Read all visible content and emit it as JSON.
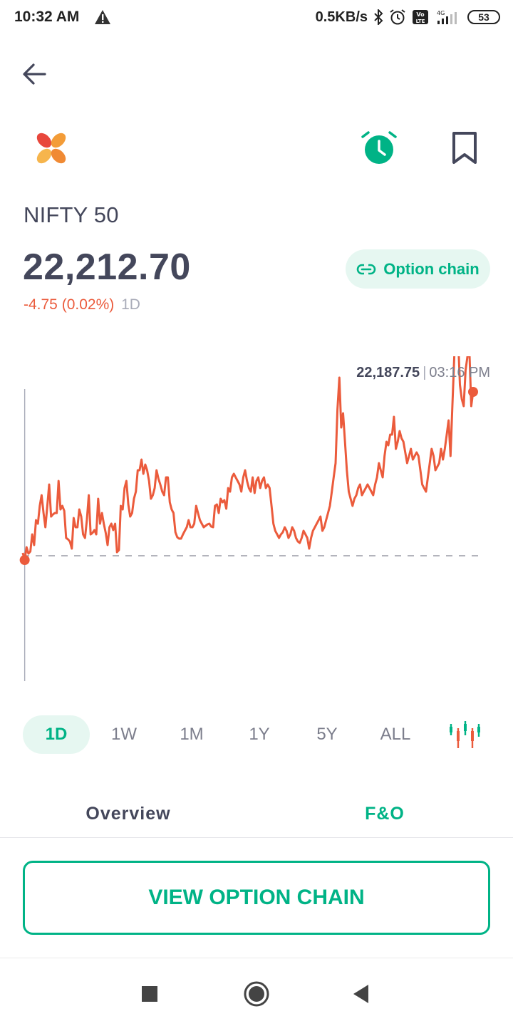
{
  "status_bar": {
    "time": "10:32 AM",
    "net_speed": "0.5KB/s",
    "network": "4G",
    "battery": "53",
    "icons": [
      "warning-icon",
      "bluetooth-icon",
      "alarm-icon",
      "volte-icon",
      "signal-icon",
      "battery-icon"
    ]
  },
  "header": {
    "back_icon": "arrow-left-icon",
    "logo": "groww-logo",
    "alarm_icon": "alarm-clock-icon",
    "bookmark_icon": "bookmark-icon"
  },
  "instrument": {
    "name": "NIFTY 50",
    "price": "22,212.70",
    "change": "-4.75 (0.02%)",
    "period": "1D",
    "option_chain_chip": "Option chain"
  },
  "colors": {
    "accent": "#00b386",
    "negative": "#eb5b3c",
    "text_primary": "#44475b",
    "text_muted": "#a8abb8"
  },
  "chart_data": {
    "type": "line",
    "tooltip_value": "22,187.75",
    "tooltip_time": "03:16 PM",
    "previous_close_line": "dashed",
    "points": [
      -4,
      6,
      -12,
      -3,
      -6,
      -30,
      -15,
      -50,
      -45,
      -70,
      -85,
      -60,
      -40,
      -70,
      -100,
      -55,
      -58,
      -60,
      -60,
      -105,
      -65,
      -70,
      -63,
      -25,
      -23,
      -20,
      -10,
      -53,
      -40,
      -40,
      -65,
      -55,
      -30,
      -25,
      -50,
      -85,
      -30,
      -32,
      -36,
      -30,
      -80,
      -45,
      -60,
      -45,
      -32,
      -15,
      -40,
      -45,
      -36,
      -45,
      -5,
      -8,
      -70,
      -65,
      -95,
      -105,
      -72,
      -55,
      -60,
      -80,
      -90,
      -120,
      -120,
      -135,
      -115,
      -128,
      -120,
      -105,
      -80,
      -85,
      -95,
      -120,
      -108,
      -100,
      -90,
      -85,
      -110,
      -110,
      -75,
      -65,
      -60,
      -33,
      -26,
      -24,
      -24,
      -30,
      -35,
      -40,
      -50,
      -40,
      -40,
      -45,
      -70,
      -60,
      -50,
      -45,
      -40,
      -42,
      -44,
      -45,
      -41,
      -40,
      -70,
      -72,
      -60,
      -80,
      -75,
      -78,
      -66,
      -95,
      -90,
      -110,
      -115,
      -110,
      -105,
      -100,
      -90,
      -110,
      -120,
      -105,
      -95,
      -90,
      -110,
      -88,
      -105,
      -110,
      -95,
      -105,
      -110,
      -95,
      -100,
      -95,
      -70,
      -45,
      -35,
      -30,
      -25,
      -30,
      -33,
      -40,
      -35,
      -25,
      -30,
      -40,
      -35,
      -25,
      -20,
      -18,
      -25,
      -35,
      -30,
      -25,
      -10,
      -25,
      -35,
      -40,
      -45,
      -50,
      -55,
      -35,
      -40,
      -50,
      -60,
      -70,
      -90,
      -110,
      -130,
      -205,
      -250,
      -180,
      -200,
      -160,
      -120,
      -90,
      -80,
      -70,
      -80,
      -85,
      -95,
      -100,
      -85,
      -90,
      -95,
      -100,
      -95,
      -90,
      -85,
      -100,
      -110,
      -130,
      -120,
      -110,
      -140,
      -160,
      -155,
      -170,
      -170,
      -195,
      -150,
      -160,
      -175,
      -165,
      -160,
      -145,
      -130,
      -140,
      -150,
      -135,
      -140,
      -145,
      -140,
      -120,
      -100,
      -95,
      -90,
      -110,
      -130,
      -150,
      -140,
      -120,
      -125,
      -130,
      -150,
      -135,
      -150,
      -170,
      -190,
      -140,
      -210,
      -280,
      -330,
      -310,
      -240,
      -220,
      -210,
      -260,
      -280,
      -290,
      -210,
      -230
    ]
  },
  "ranges": {
    "items": [
      "1D",
      "1W",
      "1M",
      "1Y",
      "5Y",
      "ALL"
    ],
    "active": "1D",
    "chart_type_icon": "candlestick-icon"
  },
  "tabs": {
    "overview": "Overview",
    "fo": "F&O",
    "active": "F&O"
  },
  "cta": {
    "label": "VIEW OPTION CHAIN"
  },
  "nav": {
    "icons": [
      "recents-square-icon",
      "home-circle-icon",
      "back-triangle-icon"
    ]
  }
}
